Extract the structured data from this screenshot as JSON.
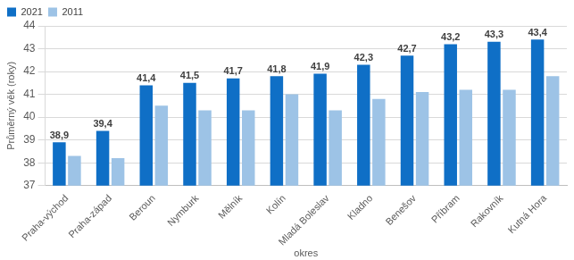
{
  "chart_data": {
    "type": "bar",
    "x_label": "okres",
    "y_label": "Průměrný věk (roky)",
    "categories": [
      "Praha-východ",
      "Praha-západ",
      "Beroun",
      "Nymburk",
      "Mělník",
      "Kolín",
      "Mladá Boleslav",
      "Kladno",
      "Benešov",
      "Příbram",
      "Rakovník",
      "Kutná Hora"
    ],
    "series": [
      {
        "name": "2021",
        "color": "#0f6fc6",
        "values": [
          38.9,
          39.4,
          41.4,
          41.5,
          41.7,
          41.8,
          41.9,
          42.3,
          42.7,
          43.2,
          43.3,
          43.4
        ],
        "data_labels": true,
        "value_labels": [
          "38,9",
          "39,4",
          "41,4",
          "41,5",
          "41,7",
          "41,8",
          "41,9",
          "42,3",
          "42,7",
          "43,2",
          "43,3",
          "43,4"
        ]
      },
      {
        "name": "2011",
        "color": "#9dc3e6",
        "values": [
          38.3,
          38.2,
          40.5,
          40.3,
          40.3,
          41.0,
          40.3,
          40.8,
          41.1,
          41.2,
          41.2,
          41.8
        ]
      }
    ],
    "ylim": [
      37,
      44
    ],
    "yticks": [
      37,
      38,
      39,
      40,
      41,
      42,
      43,
      44
    ],
    "grid": true,
    "legend": "top-left"
  }
}
